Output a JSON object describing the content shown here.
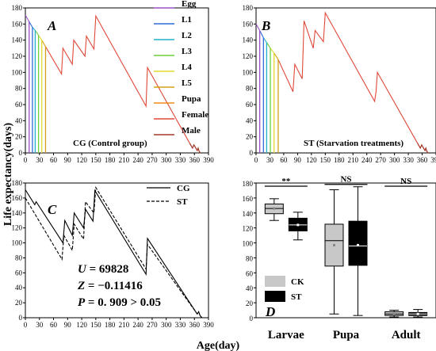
{
  "figure": {
    "ylabel": "Life expectancy(days)",
    "xlabel": "Age(day)"
  },
  "chart_data": [
    {
      "panel_letter": "A",
      "type": "line",
      "title": "CG (Control group)",
      "xlim": [
        0,
        390
      ],
      "ylim": [
        0,
        180
      ],
      "xticks": [
        0,
        30,
        60,
        90,
        120,
        150,
        180,
        210,
        240,
        270,
        300,
        330,
        360,
        390
      ],
      "yticks": [
        0,
        20,
        40,
        60,
        80,
        100,
        120,
        140,
        160,
        180
      ],
      "legend": {
        "position": "top-right",
        "entries": [
          {
            "name": "Egg",
            "color": "#9b4fc9"
          },
          {
            "name": "L1",
            "color": "#2e6bd6"
          },
          {
            "name": "L2",
            "color": "#20b2c8"
          },
          {
            "name": "L3",
            "color": "#6ccf3c"
          },
          {
            "name": "L4",
            "color": "#e3da2a"
          },
          {
            "name": "L5",
            "color": "#d4a017"
          },
          {
            "name": "Pupa",
            "color": "#f08a1c"
          },
          {
            "name": "Female",
            "color": "#e0493a"
          },
          {
            "name": "Male",
            "color": "#a0392b"
          }
        ]
      },
      "series": [
        {
          "name": "Egg",
          "color": "#9b4fc9",
          "x": [
            0,
            8
          ],
          "y": [
            171,
            163
          ]
        },
        {
          "name": "L1",
          "color": "#2e6bd6",
          "x": [
            8,
            15
          ],
          "y": [
            163,
            156
          ]
        },
        {
          "name": "L2",
          "color": "#20b2c8",
          "x": [
            15,
            21
          ],
          "y": [
            156,
            152
          ]
        },
        {
          "name": "L3",
          "color": "#6ccf3c",
          "x": [
            21,
            28
          ],
          "y": [
            152,
            146
          ]
        },
        {
          "name": "L4",
          "color": "#e3da2a",
          "x": [
            28,
            35
          ],
          "y": [
            146,
            140
          ]
        },
        {
          "name": "L5",
          "color": "#d4a017",
          "x": [
            35,
            43
          ],
          "y": [
            140,
            132
          ]
        },
        {
          "name": "Female",
          "color": "#e0493a",
          "x": [
            43,
            77,
            80,
            100,
            103,
            127,
            130,
            146,
            150,
            257,
            260,
            350,
            356,
            359,
            362,
            366,
            368,
            370,
            373
          ],
          "y": [
            132,
            98,
            130,
            110,
            140,
            120,
            145,
            129,
            170,
            58,
            106,
            12,
            6,
            10,
            7,
            3,
            6,
            2,
            0
          ]
        },
        {
          "name": "Male",
          "color": "#a0392b",
          "x": [
            350,
            356,
            359,
            362,
            366,
            368,
            370,
            373
          ],
          "y": [
            12,
            6,
            10,
            7,
            3,
            6,
            2,
            0
          ]
        }
      ],
      "drop_lines": [
        {
          "x": 8,
          "y": 163,
          "color": "#9b4fc9"
        },
        {
          "x": 15,
          "y": 156,
          "color": "#2e6bd6"
        },
        {
          "x": 21,
          "y": 152,
          "color": "#20b2c8"
        },
        {
          "x": 28,
          "y": 146,
          "color": "#6ccf3c"
        },
        {
          "x": 35,
          "y": 140,
          "color": "#e3da2a"
        },
        {
          "x": 43,
          "y": 132,
          "color": "#d4a017"
        }
      ]
    },
    {
      "panel_letter": "B",
      "type": "line",
      "title": "ST (Starvation treatments)",
      "xlim": [
        0,
        390
      ],
      "ylim": [
        0,
        180
      ],
      "xticks": [
        0,
        30,
        60,
        90,
        120,
        150,
        180,
        210,
        240,
        270,
        300,
        330,
        360,
        390
      ],
      "yticks": [
        0,
        20,
        40,
        60,
        80,
        100,
        120,
        140,
        160,
        180
      ],
      "series": [
        {
          "name": "Egg",
          "color": "#9b4fc9",
          "x": [
            0,
            8
          ],
          "y": [
            160,
            152
          ]
        },
        {
          "name": "L1",
          "color": "#2e6bd6",
          "x": [
            8,
            16
          ],
          "y": [
            152,
            143
          ]
        },
        {
          "name": "L2",
          "color": "#20b2c8",
          "x": [
            16,
            23
          ],
          "y": [
            143,
            137
          ]
        },
        {
          "name": "L3",
          "color": "#6ccf3c",
          "x": [
            23,
            31
          ],
          "y": [
            137,
            130
          ]
        },
        {
          "name": "L4",
          "color": "#e3da2a",
          "x": [
            31,
            39
          ],
          "y": [
            130,
            124
          ]
        },
        {
          "name": "L5",
          "color": "#d4a017",
          "x": [
            39,
            48
          ],
          "y": [
            124,
            116
          ]
        },
        {
          "name": "Female",
          "color": "#e0493a",
          "x": [
            48,
            80,
            84,
            100,
            104,
            124,
            128,
            146,
            150,
            257,
            260,
            263,
            350,
            356,
            359,
            362,
            366,
            368,
            370,
            373
          ],
          "y": [
            116,
            76,
            110,
            92,
            164,
            130,
            152,
            138,
            174,
            64,
            76,
            100,
            12,
            6,
            10,
            7,
            3,
            6,
            2,
            0
          ]
        },
        {
          "name": "Male",
          "color": "#a0392b",
          "x": [
            350,
            356,
            359,
            362,
            366,
            368,
            370,
            373
          ],
          "y": [
            12,
            6,
            10,
            7,
            3,
            6,
            2,
            0
          ]
        }
      ],
      "drop_lines": [
        {
          "x": 8,
          "y": 152,
          "color": "#9b4fc9"
        },
        {
          "x": 16,
          "y": 143,
          "color": "#2e6bd6"
        },
        {
          "x": 23,
          "y": 137,
          "color": "#20b2c8"
        },
        {
          "x": 31,
          "y": 130,
          "color": "#6ccf3c"
        },
        {
          "x": 39,
          "y": 124,
          "color": "#e3da2a"
        },
        {
          "x": 48,
          "y": 116,
          "color": "#d4a017"
        }
      ]
    },
    {
      "panel_letter": "C",
      "type": "line",
      "xlim": [
        0,
        390
      ],
      "ylim": [
        0,
        180
      ],
      "xticks": [
        0,
        30,
        60,
        90,
        120,
        150,
        180,
        210,
        240,
        270,
        300,
        330,
        360,
        390
      ],
      "yticks": [
        0,
        20,
        40,
        60,
        80,
        100,
        120,
        140,
        160,
        180
      ],
      "legend": {
        "position": "top-right"
      },
      "series": [
        {
          "name": "CG",
          "style": "solid",
          "x": [
            0,
            20,
            23,
            80,
            84,
            100,
            104,
            124,
            128,
            144,
            148,
            257,
            260,
            366,
            369,
            372,
            376
          ],
          "y": [
            171,
            151,
            155,
            100,
            130,
            110,
            140,
            120,
            145,
            129,
            170,
            58,
            106,
            5,
            8,
            3,
            0
          ]
        },
        {
          "name": "ST",
          "style": "dashed",
          "x": [
            0,
            78,
            82,
            100,
            104,
            124,
            128,
            146,
            150,
            257,
            260,
            366,
            369,
            372,
            376
          ],
          "y": [
            160,
            78,
            110,
            90,
            125,
            105,
            155,
            140,
            174,
            65,
            98,
            5,
            8,
            3,
            0
          ]
        }
      ],
      "annotations": [
        "U = 69828",
        "Z = −0.11416",
        "P = 0. 909 > 0.05"
      ]
    },
    {
      "panel_letter": "D",
      "type": "box",
      "categories": [
        "Larvae",
        "Pupa",
        "Adult"
      ],
      "ylim": [
        0,
        180
      ],
      "yticks": [
        0,
        20,
        40,
        60,
        80,
        100,
        120,
        140,
        160,
        180
      ],
      "legend": {
        "position": "bottom-left"
      },
      "series": [
        {
          "name": "CK",
          "color": "#c8c8c8",
          "boxes": [
            {
              "min": 130,
              "q1": 139,
              "median": 146,
              "mean": 146,
              "q3": 152,
              "max": 159
            },
            {
              "min": 5,
              "q1": 69,
              "median": 103,
              "mean": 97,
              "q3": 125,
              "max": 171
            },
            {
              "min": 1,
              "q1": 3,
              "median": 5,
              "mean": 5,
              "q3": 8,
              "max": 10
            }
          ]
        },
        {
          "name": "ST",
          "color": "#000000",
          "boxes": [
            {
              "min": 104,
              "q1": 116,
              "median": 124,
              "mean": 124,
              "q3": 133,
              "max": 141
            },
            {
              "min": 3,
              "q1": 70,
              "median": 96,
              "mean": 97,
              "q3": 129,
              "max": 175
            },
            {
              "min": 1,
              "q1": 3,
              "median": 5,
              "mean": 5,
              "q3": 7,
              "max": 11
            }
          ]
        }
      ],
      "significance": [
        "**",
        "NS",
        "NS"
      ]
    }
  ]
}
